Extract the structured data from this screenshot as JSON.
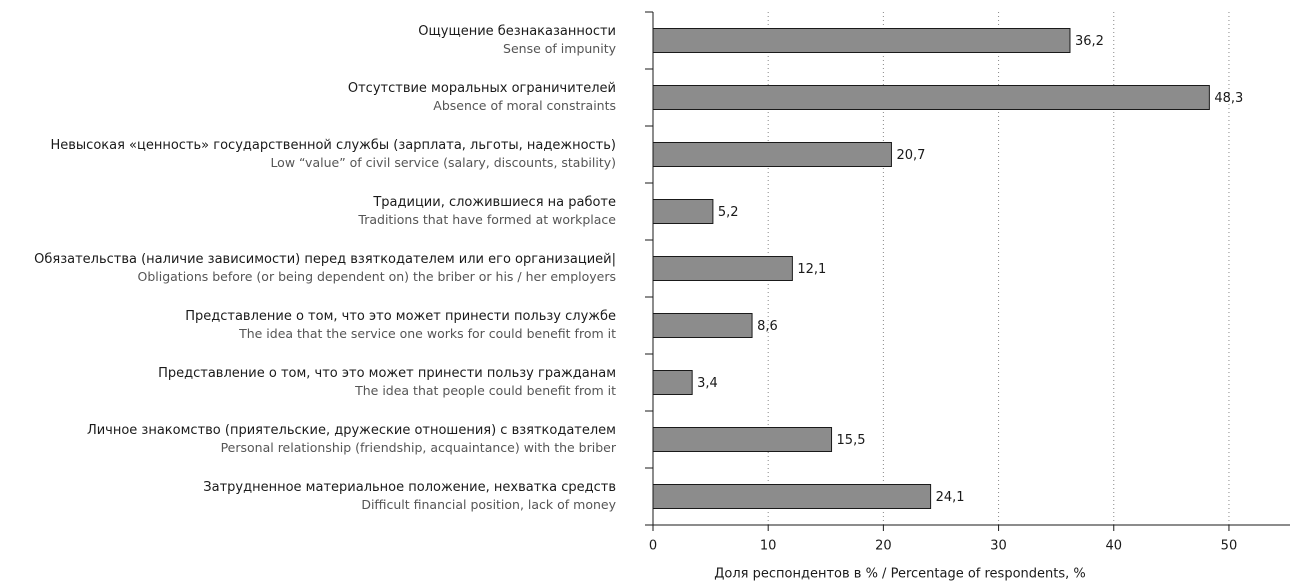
{
  "chart_data": {
    "type": "barh",
    "categories": [
      "Ощущение безнаказанности",
      "Отсутствие моральных ограничителей",
      "Невысокая «ценность» государственной службы (зарплата, льготы, надежность)",
      "Традиции, сложившиеся на работе",
      "Обязательства (наличие зависимости) перед взяткодателем или его организацией|",
      "Представление о том, что это может принести пользу службе",
      "Представление о том, что это может принести пользу гражданам",
      "Личное знакомство (приятельские, дружеские отношения) с взяткодателем",
      "Затрудненное материальное положение, нехватка средств"
    ],
    "categories_en": [
      "Sense of impunity",
      "Absence of moral constraints",
      "Low “value” of civil service (salary, discounts, stability)",
      "Traditions that have formed at workplace",
      "Obligations before (or being dependent on) the briber or his / her employers",
      "The idea that the service one works for could benefit from it",
      "The idea that people could benefit from it",
      "Personal relationship (friendship, acquaintance) with the briber",
      "Difficult financial position, lack of money"
    ],
    "values": [
      36.2,
      48.3,
      20.7,
      5.2,
      12.1,
      8.6,
      3.4,
      15.5,
      24.1
    ],
    "value_labels": [
      "36,2",
      "48,3",
      "20,7",
      "5,2",
      "12,1",
      "8,6",
      "3,4",
      "15,5",
      "24,1"
    ],
    "color": "#8c8c8c",
    "xlabel": "Доля респондентов в % / Percentage of respondents, %",
    "xlim": [
      0,
      55.3
    ],
    "xticks": [
      0,
      10,
      20,
      30,
      40,
      50
    ],
    "grid": true
  }
}
